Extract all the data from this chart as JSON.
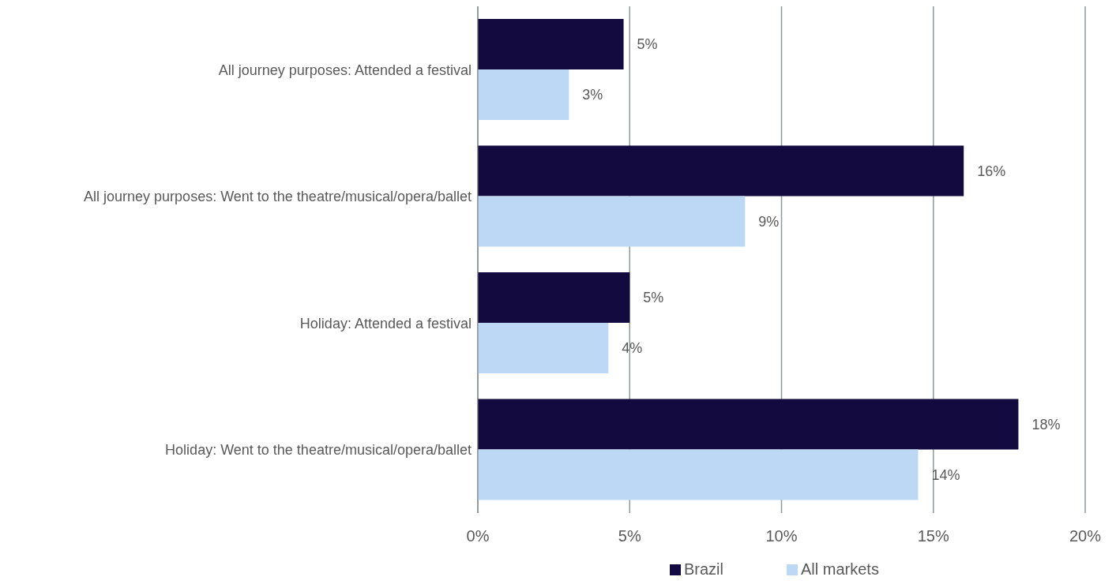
{
  "chart_data": {
    "type": "bar",
    "orientation": "horizontal",
    "categories": [
      "All journey purposes: Attended a festival",
      "All journey purposes: Went to the theatre/musical/opera/ballet",
      "Holiday: Attended a festival",
      "Holiday: Went to the theatre/musical/opera/ballet"
    ],
    "series": [
      {
        "name": "Brazil",
        "color": "#130a40",
        "values": [
          4.8,
          16.0,
          5.0,
          17.8
        ],
        "value_labels": [
          "5%",
          "16%",
          "5%",
          "18%"
        ]
      },
      {
        "name": "All markets",
        "color": "#bdd8f5",
        "values": [
          3.0,
          8.8,
          4.3,
          14.5
        ],
        "value_labels": [
          "3%",
          "9%",
          "4%",
          "14%"
        ]
      }
    ],
    "xlim": [
      0,
      20
    ],
    "xticks": [
      {
        "value": 0,
        "label": "0%"
      },
      {
        "value": 5,
        "label": "5%"
      },
      {
        "value": 10,
        "label": "10%"
      },
      {
        "value": 15,
        "label": "15%"
      },
      {
        "value": 20,
        "label": "20%"
      }
    ],
    "grid": "x",
    "legend": "bottom"
  }
}
